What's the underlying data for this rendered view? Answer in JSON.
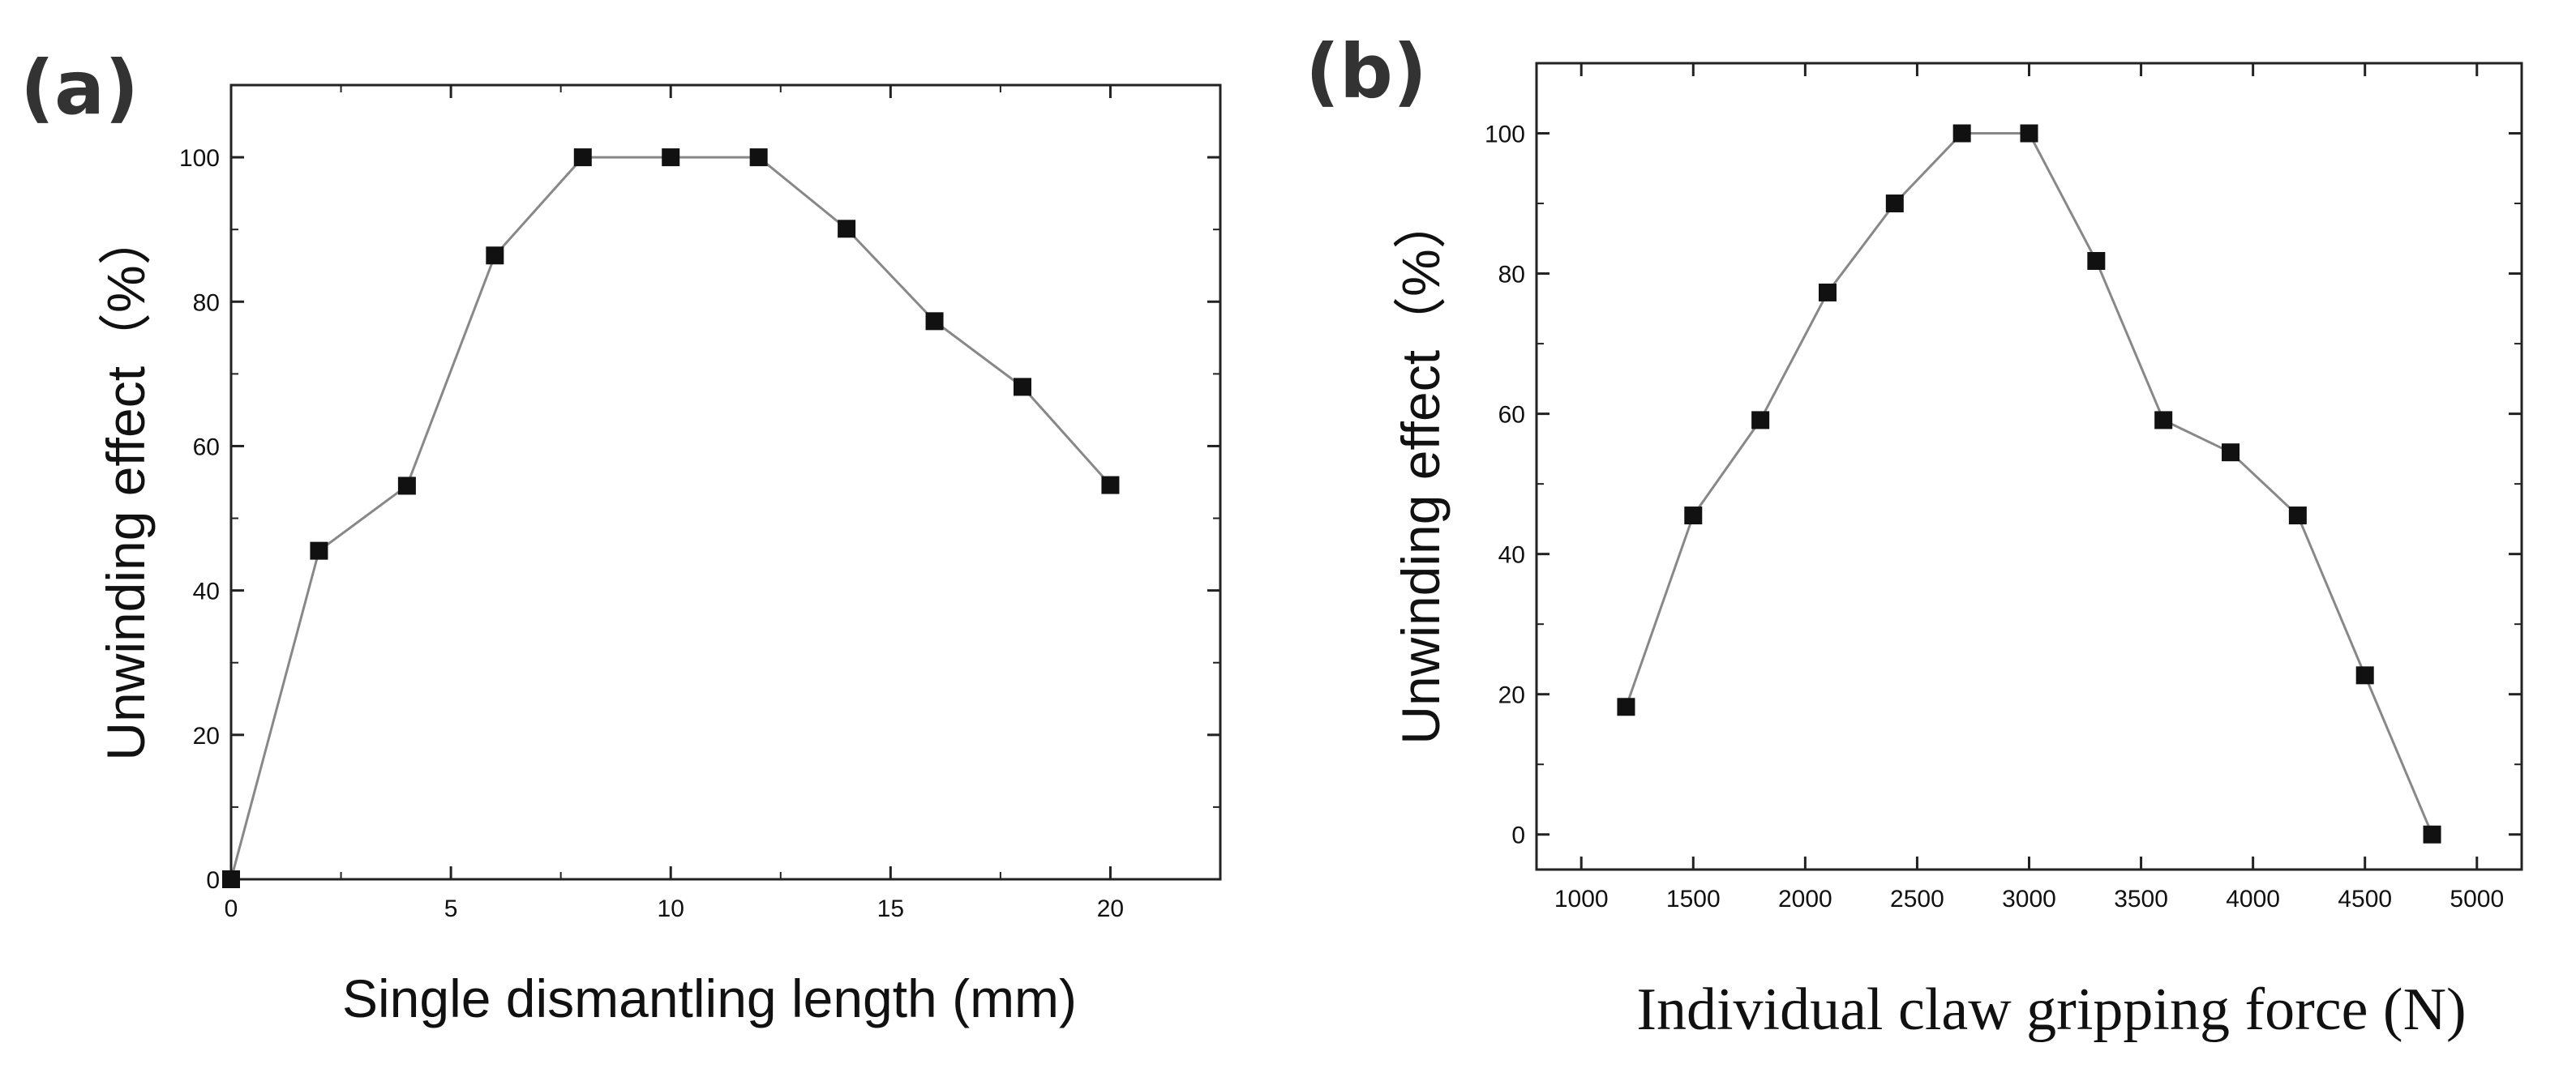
{
  "chart_data": [
    {
      "type": "line",
      "panel_label": "(a)",
      "xlabel": "Single dismantling length (mm)",
      "ylabel": "Unwinding effect（%）",
      "xlim": [
        0,
        22.5
      ],
      "ylim": [
        0,
        110
      ],
      "x_ticks": [
        "0",
        "5",
        "10",
        "15",
        "20"
      ],
      "y_ticks": [
        "0",
        "20",
        "40",
        "60",
        "80",
        "100"
      ],
      "marker": "square",
      "color": "#111111",
      "line_color": "#888888",
      "series": [
        {
          "name": "Unwinding effect",
          "x": [
            0,
            2,
            4,
            6,
            8,
            10,
            12,
            14,
            16,
            18,
            20
          ],
          "y": [
            0,
            45.5,
            54.5,
            86.4,
            100,
            100,
            100,
            90.1,
            77.3,
            68.2,
            54.6
          ]
        }
      ]
    },
    {
      "type": "line",
      "panel_label": "(b)",
      "xlabel": "Individual claw gripping force (N)",
      "ylabel": "Unwinding effect（%）",
      "xlim": [
        800,
        5200
      ],
      "ylim": [
        -5,
        110
      ],
      "x_ticks": [
        "1000",
        "1500",
        "2000",
        "2500",
        "3000",
        "3500",
        "4000",
        "4500",
        "5000"
      ],
      "y_ticks": [
        "0",
        "20",
        "40",
        "60",
        "80",
        "100"
      ],
      "marker": "square",
      "color": "#111111",
      "line_color": "#888888",
      "series": [
        {
          "name": "Unwinding effect",
          "x": [
            1200,
            1500,
            1800,
            2100,
            2400,
            2700,
            3000,
            3300,
            3600,
            3900,
            4200,
            4500,
            4800
          ],
          "y": [
            18.2,
            45.5,
            59.1,
            77.3,
            90.0,
            100,
            100,
            81.8,
            59.1,
            54.5,
            45.5,
            22.7,
            0
          ]
        }
      ]
    }
  ]
}
